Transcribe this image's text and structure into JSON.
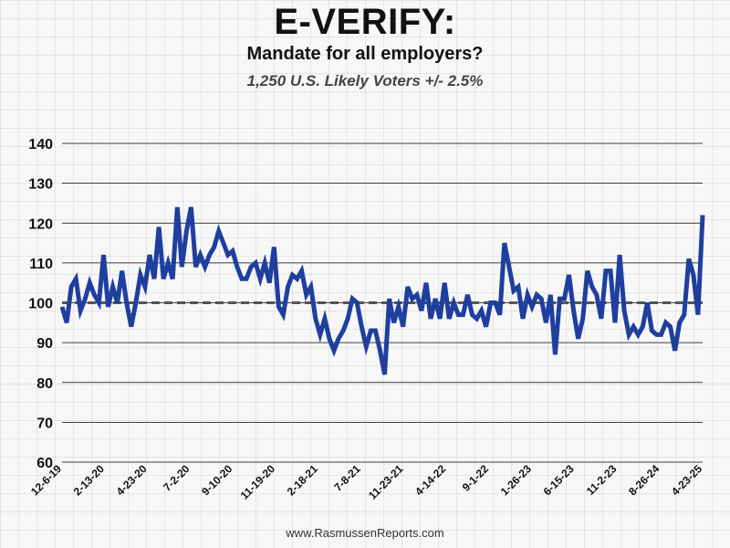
{
  "header": {
    "title": "E-VERIFY:",
    "subtitle": "Mandate for all employers?",
    "note": "1,250 U.S. Likely Voters +/- 2.5%"
  },
  "footer": {
    "source": "www.RasmussenReports.com"
  },
  "colors": {
    "line": "#1f3f9f",
    "baseline": "#555555",
    "grid": "#000000"
  },
  "chart_data": {
    "type": "line",
    "title": "E-VERIFY:",
    "subtitle": "Mandate for all employers?",
    "ylim": [
      60,
      140
    ],
    "yticks": [
      60,
      70,
      80,
      90,
      100,
      110,
      120,
      130,
      140
    ],
    "x_tick_labels": [
      "12-6-19",
      "2-13-20",
      "4-23-20",
      "7-2-20",
      "9-10-20",
      "11-19-20",
      "2-18-21",
      "7-8-21",
      "11-23-21",
      "4-14-22",
      "9-1-22",
      "1-26-23",
      "6-15-23",
      "11-2-23",
      "8-26-24",
      "4-23-25"
    ],
    "baseline": 100,
    "grid": "horizontal",
    "series": [
      {
        "values": [
          99,
          95,
          104,
          106,
          98,
          101,
          105,
          102,
          100,
          112,
          99,
          104,
          100,
          108,
          100,
          94,
          100,
          107,
          104,
          112,
          106,
          119,
          106,
          110,
          106,
          124,
          109,
          118,
          124,
          109,
          112,
          109,
          112,
          114,
          118,
          115,
          112,
          113,
          109,
          106,
          106,
          109,
          110,
          106,
          110,
          105,
          114,
          99,
          97,
          104,
          107,
          106,
          108,
          102,
          104,
          96,
          92,
          96,
          91,
          88,
          91,
          93,
          96,
          101,
          100,
          94,
          89,
          93,
          93,
          88,
          82,
          101,
          95,
          99,
          94,
          104,
          101,
          102,
          98,
          105,
          96,
          101,
          96,
          105,
          96,
          100,
          97,
          97,
          102,
          97,
          96,
          98,
          94,
          100,
          100,
          97,
          115,
          109,
          103,
          104,
          96,
          102,
          99,
          102,
          101,
          95,
          102,
          87,
          101,
          101,
          107,
          98,
          91,
          96,
          108,
          104,
          102,
          96,
          108,
          108,
          95,
          112,
          98,
          92,
          94,
          92,
          94,
          100,
          93,
          92,
          92,
          95,
          94,
          88,
          95,
          97,
          111,
          107,
          97,
          122
        ]
      }
    ]
  }
}
